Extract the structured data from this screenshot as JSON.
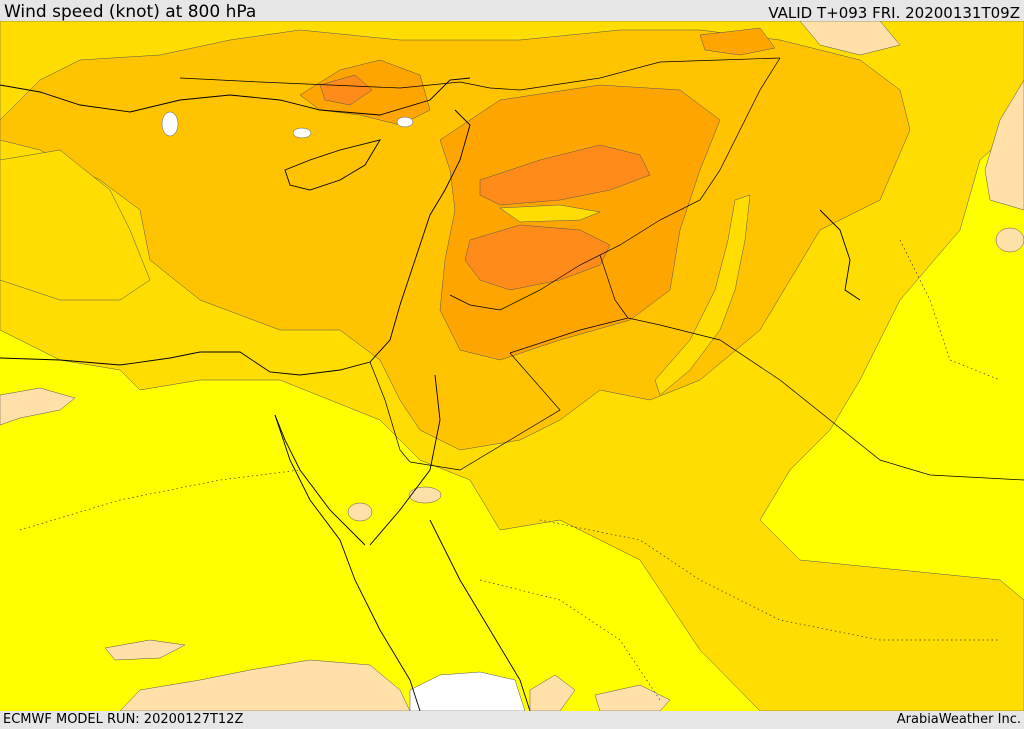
{
  "header": {
    "title": "Wind speed (knot) at 800 hPa",
    "valid": "VALID T+093 FRI. 20200131T09Z"
  },
  "footer": {
    "model_run": "ECMWF MODEL RUN: 20200127T12Z",
    "credit": "ArabiaWeather Inc."
  },
  "colors": {
    "yellow": "#ffff00",
    "gold": "#ffdd00",
    "light_orange": "#ffc300",
    "orange": "#ffa500",
    "dark_orange": "#ff8c1a",
    "peach": "#ffe0a8",
    "pale": "#ffffff"
  }
}
